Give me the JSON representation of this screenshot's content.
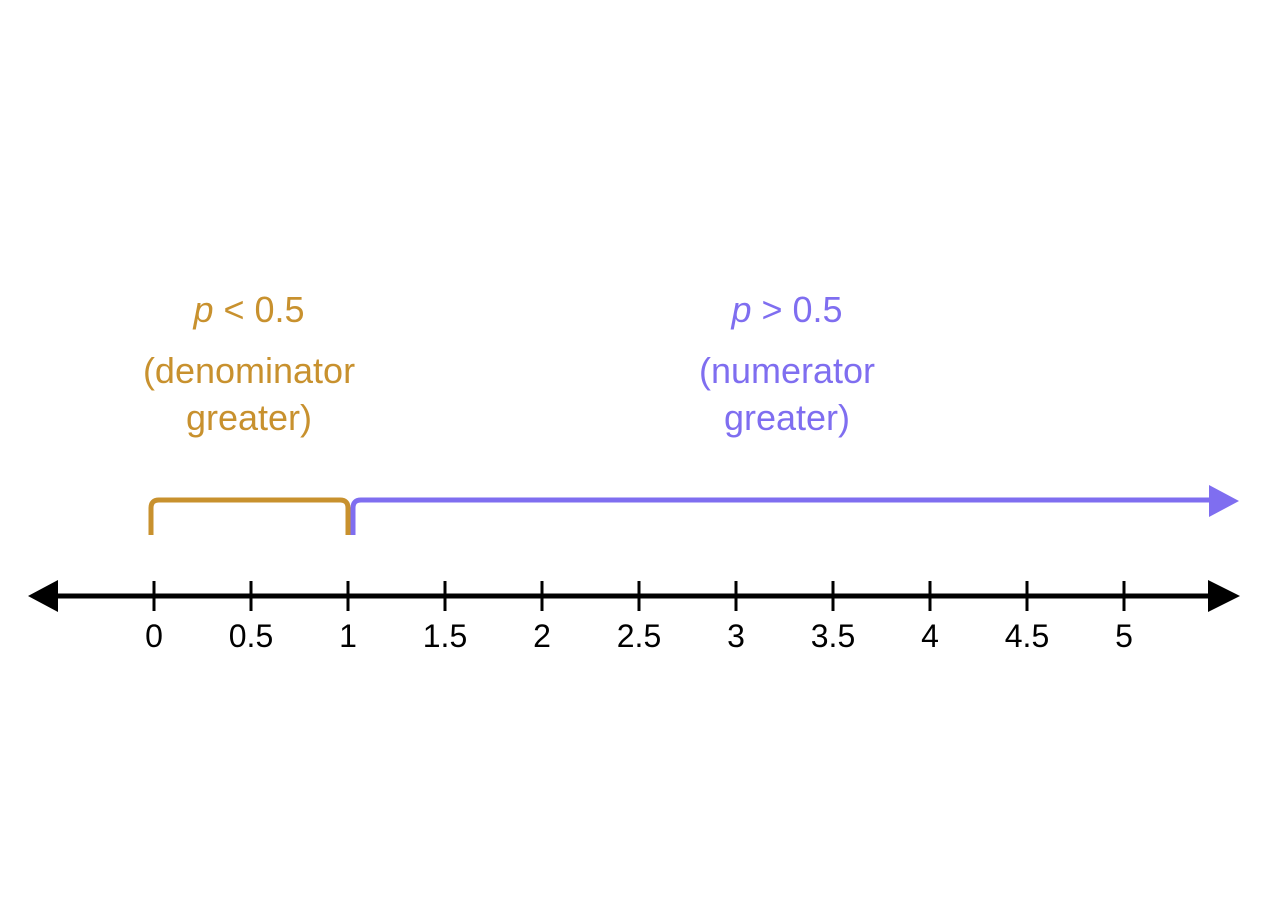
{
  "colors": {
    "axis": "#000000",
    "left_region": "#C8912E",
    "right_region": "#7F6EF0"
  },
  "left_region": {
    "variable": "p",
    "relation": " < 0.5",
    "line2": "(denominator",
    "line3": "greater)",
    "from": 0,
    "to": 1
  },
  "right_region": {
    "variable": "p",
    "relation": " > 0.5",
    "line2": "(numerator",
    "line3": "greater)",
    "from": 1
  },
  "axis": {
    "ticks": [
      "0",
      "0.5",
      "1",
      "1.5",
      "2",
      "2.5",
      "3",
      "3.5",
      "4",
      "4.5",
      "5"
    ]
  }
}
